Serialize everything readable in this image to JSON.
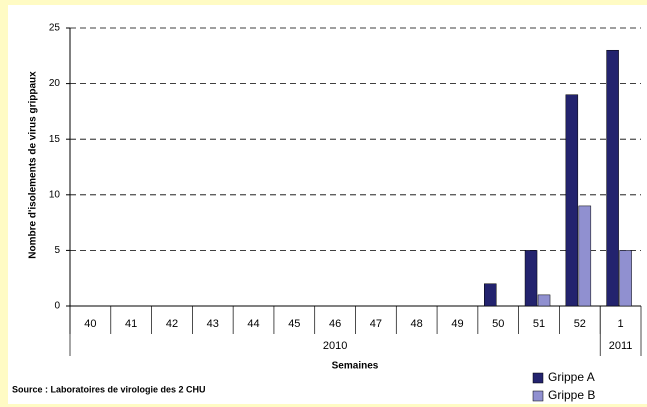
{
  "chart_data": {
    "type": "bar",
    "ylabel": "Nombre d'isolements de virus grippaux",
    "xlabel": "Semaines",
    "source": "Source : Laboratoires de virologie des 2 CHU",
    "categories": [
      "40",
      "41",
      "42",
      "43",
      "44",
      "45",
      "46",
      "47",
      "48",
      "49",
      "50",
      "51",
      "52",
      "1"
    ],
    "x_groups": [
      {
        "label": "2010",
        "count": 13
      },
      {
        "label": "2011",
        "count": 1
      }
    ],
    "series": [
      {
        "name": "Grippe A",
        "color": "#23236e",
        "values": [
          0,
          0,
          0,
          0,
          0,
          0,
          0,
          0,
          0,
          0,
          2,
          5,
          19,
          23
        ]
      },
      {
        "name": "Grippe B",
        "color": "#9090d0",
        "values": [
          0,
          0,
          0,
          0,
          0,
          0,
          0,
          0,
          0,
          0,
          0,
          1,
          9,
          5
        ]
      }
    ],
    "ylim": [
      0,
      25
    ],
    "yticks": [
      0,
      5,
      10,
      15,
      20,
      25
    ],
    "grid": true,
    "legend": "bottom-right"
  }
}
